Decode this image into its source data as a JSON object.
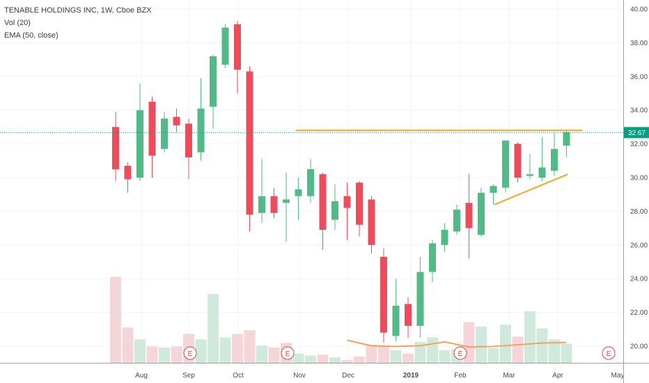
{
  "legend": {
    "title": "TENABLE HOLDINGS INC, 1W, Cboe BZX",
    "volume": "Vol (20)",
    "ema": "EMA (50, close)"
  },
  "colors": {
    "up": "#53b987",
    "down": "#eb4d5c",
    "vol_up": "#cfe9dc",
    "vol_down": "#f4d5d8",
    "ema": "#f7a05a",
    "trendline": "#f5a623",
    "price_line": "#0a9e80",
    "price_label_bg": "#0a9e80",
    "earnings": "#e0443e"
  },
  "price_label": "32.67",
  "chart_data": {
    "type": "candlestick",
    "title": "TENABLE HOLDINGS INC, 1W, Cboe BZX",
    "y_axis": {
      "ticks": [
        "40.00",
        "38.00",
        "36.00",
        "34.00",
        "32.00",
        "30.00",
        "28.00",
        "26.00",
        "24.00",
        "22.00",
        "20.00"
      ],
      "ylim": [
        19,
        40.4
      ]
    },
    "x_axis": {
      "labels": [
        {
          "text": "Aug",
          "bold": false
        },
        {
          "text": "Sep",
          "bold": false
        },
        {
          "text": "Oct",
          "bold": false
        },
        {
          "text": "Nov",
          "bold": false
        },
        {
          "text": "Dec",
          "bold": false
        },
        {
          "text": "2019",
          "bold": true
        },
        {
          "text": "Feb",
          "bold": false
        },
        {
          "text": "Mar",
          "bold": false
        },
        {
          "text": "Apr",
          "bold": false
        },
        {
          "text": "May",
          "bold": false
        }
      ]
    },
    "candles": [
      {
        "o": 33.0,
        "h": 33.9,
        "l": 29.8,
        "c": 30.5
      },
      {
        "o": 30.7,
        "h": 30.9,
        "l": 29.1,
        "c": 29.9
      },
      {
        "o": 30.0,
        "h": 35.6,
        "l": 29.8,
        "c": 34.0
      },
      {
        "o": 34.5,
        "h": 34.8,
        "l": 30.0,
        "c": 31.3
      },
      {
        "o": 31.7,
        "h": 33.9,
        "l": 31.5,
        "c": 33.5
      },
      {
        "o": 33.6,
        "h": 34.1,
        "l": 32.7,
        "c": 33.1
      },
      {
        "o": 33.2,
        "h": 33.5,
        "l": 29.9,
        "c": 31.2
      },
      {
        "o": 31.5,
        "h": 35.9,
        "l": 31.0,
        "c": 34.1
      },
      {
        "o": 34.2,
        "h": 37.3,
        "l": 32.9,
        "c": 37.2
      },
      {
        "o": 36.7,
        "h": 39.1,
        "l": 36.5,
        "c": 38.9
      },
      {
        "o": 39.1,
        "h": 39.3,
        "l": 35.0,
        "c": 36.4
      },
      {
        "o": 36.3,
        "h": 36.6,
        "l": 26.8,
        "c": 27.8
      },
      {
        "o": 27.9,
        "h": 31.1,
        "l": 27.3,
        "c": 28.9
      },
      {
        "o": 28.9,
        "h": 29.4,
        "l": 27.6,
        "c": 27.9
      },
      {
        "o": 28.5,
        "h": 30.3,
        "l": 26.2,
        "c": 28.7
      },
      {
        "o": 28.9,
        "h": 30.0,
        "l": 27.5,
        "c": 29.3
      },
      {
        "o": 28.9,
        "h": 31.1,
        "l": 28.5,
        "c": 30.5
      },
      {
        "o": 30.2,
        "h": 30.3,
        "l": 25.7,
        "c": 26.9
      },
      {
        "o": 27.5,
        "h": 29.6,
        "l": 26.9,
        "c": 28.6
      },
      {
        "o": 28.9,
        "h": 29.7,
        "l": 26.3,
        "c": 28.2
      },
      {
        "o": 29.7,
        "h": 29.8,
        "l": 26.5,
        "c": 27.2
      },
      {
        "o": 28.7,
        "h": 28.9,
        "l": 25.5,
        "c": 26.0
      },
      {
        "o": 25.3,
        "h": 25.8,
        "l": 20.2,
        "c": 20.8
      },
      {
        "o": 20.6,
        "h": 24.0,
        "l": 20.3,
        "c": 22.4
      },
      {
        "o": 22.5,
        "h": 22.9,
        "l": 20.5,
        "c": 21.2
      },
      {
        "o": 21.2,
        "h": 25.3,
        "l": 20.5,
        "c": 24.4
      },
      {
        "o": 24.4,
        "h": 26.3,
        "l": 23.8,
        "c": 26.1
      },
      {
        "o": 26.0,
        "h": 27.3,
        "l": 25.6,
        "c": 26.9
      },
      {
        "o": 26.8,
        "h": 28.4,
        "l": 26.6,
        "c": 28.1
      },
      {
        "o": 28.5,
        "h": 30.2,
        "l": 25.2,
        "c": 27.0
      },
      {
        "o": 26.6,
        "h": 29.4,
        "l": 26.5,
        "c": 29.1
      },
      {
        "o": 29.1,
        "h": 29.6,
        "l": 28.4,
        "c": 29.5
      },
      {
        "o": 29.4,
        "h": 32.2,
        "l": 29.1,
        "c": 32.2
      },
      {
        "o": 32.0,
        "h": 32.1,
        "l": 29.7,
        "c": 30.0
      },
      {
        "o": 30.1,
        "h": 31.4,
        "l": 29.9,
        "c": 30.2
      },
      {
        "o": 30.0,
        "h": 32.4,
        "l": 29.8,
        "c": 30.6
      },
      {
        "o": 30.4,
        "h": 32.7,
        "l": 30.1,
        "c": 31.7
      },
      {
        "o": 31.9,
        "h": 32.8,
        "l": 31.2,
        "c": 32.7
      }
    ],
    "volume": [
      {
        "v": 0.95,
        "up": false
      },
      {
        "v": 0.39,
        "up": false
      },
      {
        "v": 0.26,
        "up": true
      },
      {
        "v": 0.18,
        "up": false
      },
      {
        "v": 0.17,
        "up": true
      },
      {
        "v": 0.18,
        "up": false
      },
      {
        "v": 0.32,
        "up": false
      },
      {
        "v": 0.26,
        "up": true
      },
      {
        "v": 0.76,
        "up": true
      },
      {
        "v": 0.28,
        "up": true
      },
      {
        "v": 0.32,
        "up": false
      },
      {
        "v": 0.36,
        "up": false
      },
      {
        "v": 0.19,
        "up": true
      },
      {
        "v": 0.17,
        "up": false
      },
      {
        "v": 0.22,
        "up": false
      },
      {
        "v": 0.1,
        "up": true
      },
      {
        "v": 0.08,
        "up": true
      },
      {
        "v": 0.09,
        "up": false
      },
      {
        "v": 0.06,
        "up": true
      },
      {
        "v": 0.03,
        "up": false
      },
      {
        "v": 0.07,
        "up": false
      },
      {
        "v": 0.2,
        "up": false
      },
      {
        "v": 0.18,
        "up": false
      },
      {
        "v": 0.14,
        "up": true
      },
      {
        "v": 0.1,
        "up": false
      },
      {
        "v": 0.23,
        "up": true
      },
      {
        "v": 0.28,
        "up": true
      },
      {
        "v": 0.14,
        "up": true
      },
      {
        "v": 0.15,
        "up": true
      },
      {
        "v": 0.45,
        "up": false
      },
      {
        "v": 0.4,
        "up": true
      },
      {
        "v": 0.16,
        "up": true
      },
      {
        "v": 0.42,
        "up": true
      },
      {
        "v": 0.29,
        "up": false
      },
      {
        "v": 0.57,
        "up": true
      },
      {
        "v": 0.38,
        "up": true
      },
      {
        "v": 0.26,
        "up": true
      },
      {
        "v": 0.21,
        "up": true
      }
    ],
    "ema": [
      {
        "i": 19,
        "v": 20.35
      },
      {
        "i": 21,
        "v": 20.02
      },
      {
        "i": 23,
        "v": 19.98
      },
      {
        "i": 25,
        "v": 20.02
      },
      {
        "i": 27,
        "v": 20.25
      },
      {
        "i": 29,
        "v": 19.95
      },
      {
        "i": 31,
        "v": 19.98
      },
      {
        "i": 33,
        "v": 20.08
      },
      {
        "i": 35,
        "v": 20.18
      },
      {
        "i": 37,
        "v": 20.22
      }
    ],
    "resistance_line": {
      "i1": 15,
      "i2": 38.3,
      "v": 32.8
    },
    "support_line": {
      "i1": 31.1,
      "v1": 28.4,
      "i2": 37.1,
      "v2": 30.2
    },
    "earnings_marker": "E"
  }
}
